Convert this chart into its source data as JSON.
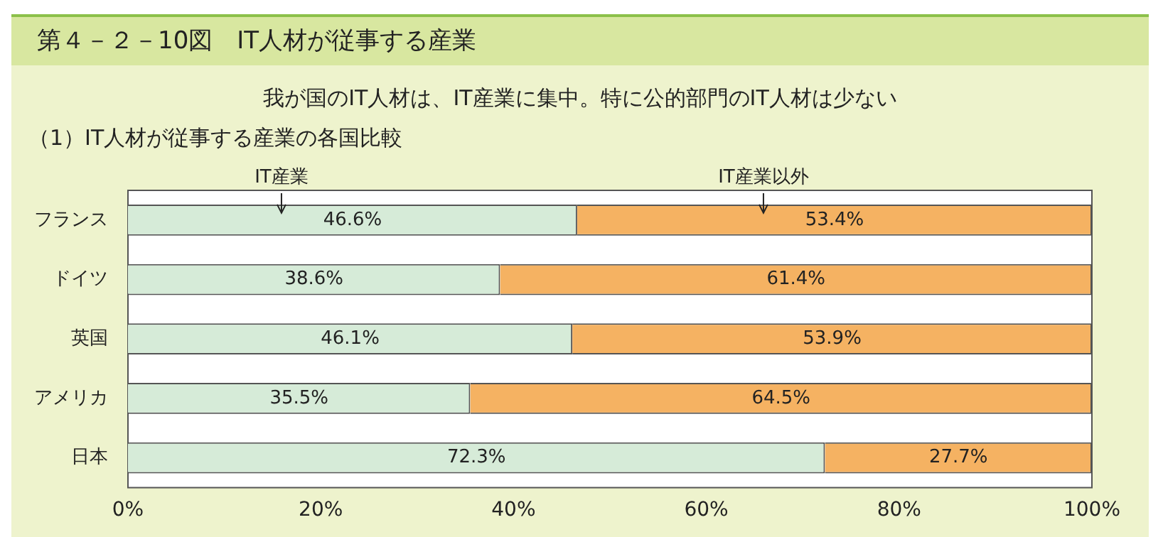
{
  "chart_data": {
    "type": "bar",
    "orientation": "horizontal",
    "stacked": true,
    "title": "第４－２－10図　IT人材が従事する産業",
    "subtitle": "我が国のIT人材は、IT産業に集中。特に公的部門のIT人材は少ない",
    "annotations": [
      "（1）IT人材が従事する産業の各国比較"
    ],
    "categories": [
      "フランス",
      "ドイツ",
      "英国",
      "アメリカ",
      "日本"
    ],
    "series": [
      {
        "name": "IT産業",
        "color": "#d6ebd8",
        "values": [
          46.6,
          38.6,
          46.1,
          35.5,
          72.3
        ],
        "value_labels": [
          "46.6%",
          "38.6%",
          "46.1%",
          "35.5%",
          "72.3%"
        ]
      },
      {
        "name": "IT産業以外",
        "color": "#f5b262",
        "values": [
          53.4,
          61.4,
          53.9,
          64.5,
          27.7
        ],
        "value_labels": [
          "53.4%",
          "61.4%",
          "53.9%",
          "64.5%",
          "27.7%"
        ]
      }
    ],
    "xlim": [
      0,
      100
    ],
    "xticks": [
      {
        "value": 0,
        "label": "0%"
      },
      {
        "value": 20,
        "label": "20%"
      },
      {
        "value": 40,
        "label": "40%"
      },
      {
        "value": 60,
        "label": "60%"
      },
      {
        "value": 80,
        "label": "80%"
      },
      {
        "value": 100,
        "label": "100%"
      }
    ],
    "grid": false,
    "legend": false
  }
}
